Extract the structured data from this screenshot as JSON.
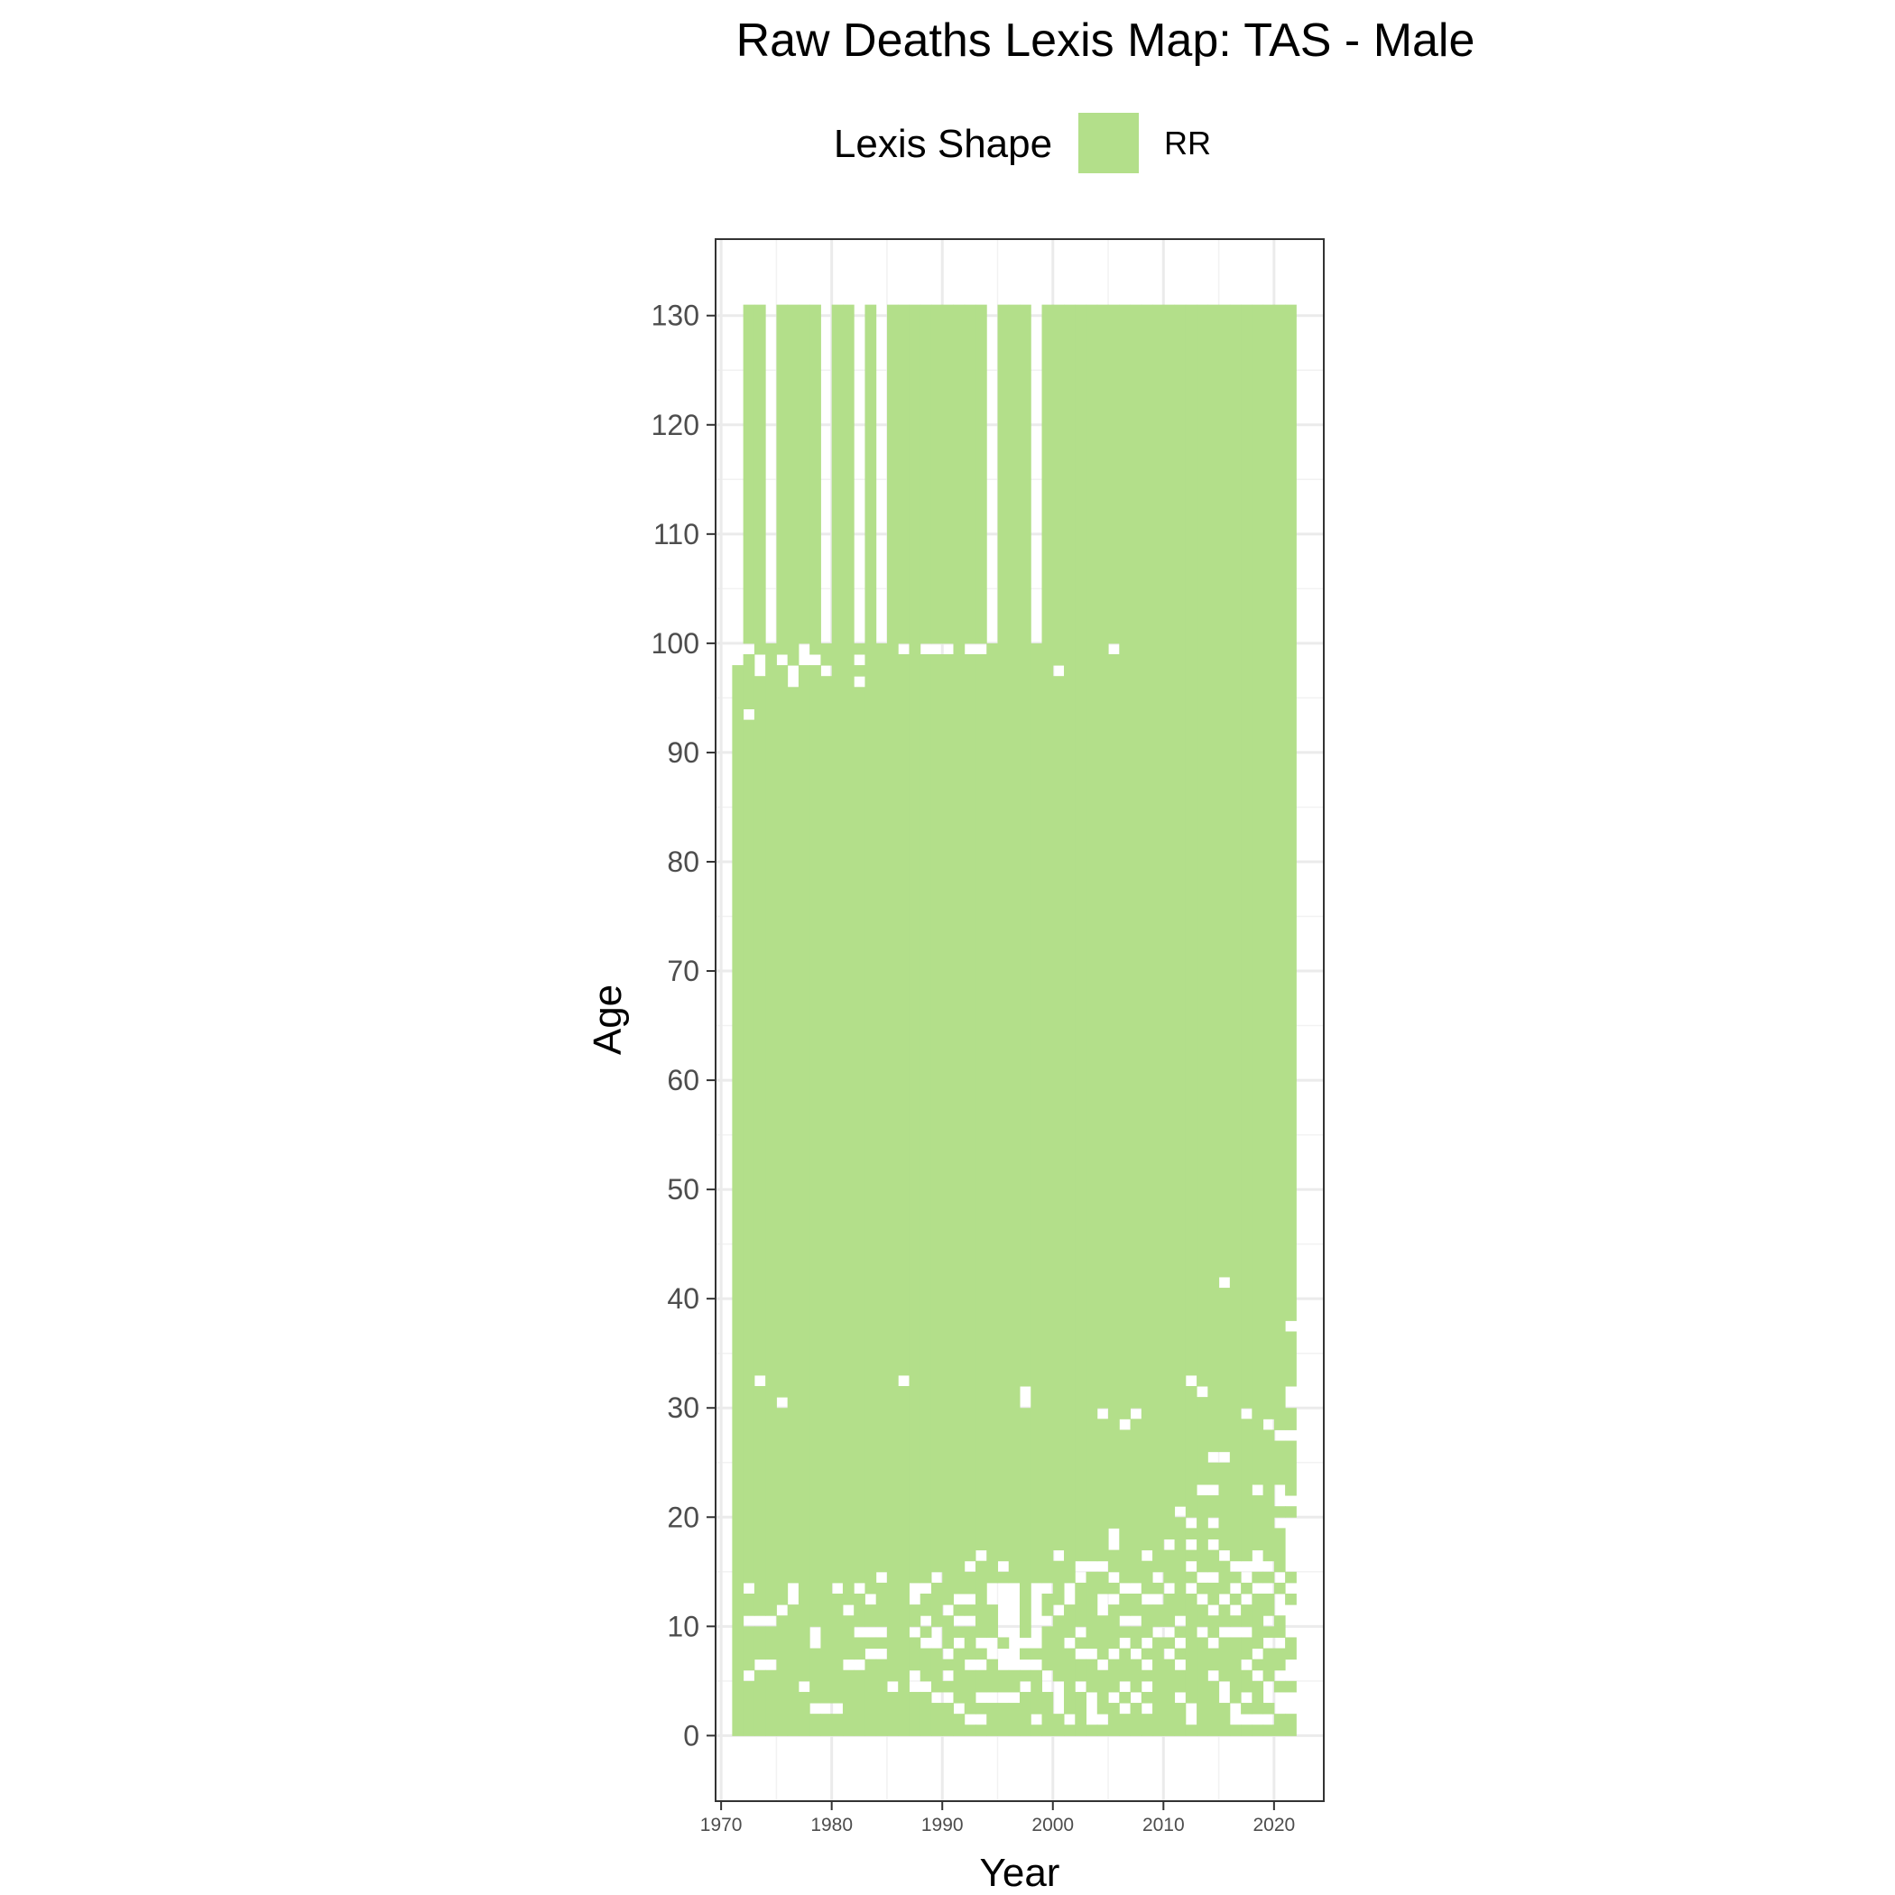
{
  "chart_data": {
    "type": "heatmap",
    "title": "Raw Deaths Lexis Map: TAS - Male",
    "xlabel": "Year",
    "ylabel": "Age",
    "xlim": [
      1969.5,
      2024.5
    ],
    "ylim": [
      -6,
      137
    ],
    "x_ticks": [
      1970,
      1980,
      1990,
      2000,
      2010,
      2020
    ],
    "y_ticks": [
      0,
      10,
      20,
      30,
      40,
      50,
      60,
      70,
      80,
      90,
      100,
      110,
      120,
      130
    ],
    "grid": true,
    "legend": {
      "title": "Lexis Shape",
      "position": "top",
      "entries": [
        {
          "label": "RR",
          "color": "#b3df8a"
        }
      ]
    },
    "fill_color": "#b3df8a",
    "cell": {
      "width_years": 1,
      "height_years": 1
    },
    "years": [
      1971,
      2021
    ],
    "coverage": [
      {
        "years": [
          1971,
          1971
        ],
        "age_max": 97
      },
      {
        "years": [
          1972,
          1973
        ],
        "age_max": 130
      },
      {
        "years": [
          1974,
          1974
        ],
        "age_max": 99
      },
      {
        "years": [
          1975,
          1978
        ],
        "age_max": 130
      },
      {
        "years": [
          1979,
          1979
        ],
        "age_max": 99
      },
      {
        "years": [
          1980,
          1981
        ],
        "age_max": 130
      },
      {
        "years": [
          1982,
          1982
        ],
        "age_max": 99
      },
      {
        "years": [
          1983,
          1983
        ],
        "age_max": 130
      },
      {
        "years": [
          1984,
          1984
        ],
        "age_max": 99
      },
      {
        "years": [
          1985,
          1993
        ],
        "age_max": 130
      },
      {
        "years": [
          1994,
          1994
        ],
        "age_max": 99
      },
      {
        "years": [
          1995,
          1997
        ],
        "age_max": 130
      },
      {
        "years": [
          1998,
          1998
        ],
        "age_max": 99
      },
      {
        "years": [
          1999,
          2021
        ],
        "age_max": 130
      }
    ],
    "missing_cells": [
      [
        1971,
        98
      ],
      [
        1972,
        99
      ],
      [
        1972,
        93
      ],
      [
        1973,
        98
      ],
      [
        1973,
        97
      ],
      [
        1975,
        98
      ],
      [
        1976,
        97
      ],
      [
        1976,
        96
      ],
      [
        1977,
        99
      ],
      [
        1977,
        98
      ],
      [
        1978,
        98
      ],
      [
        1979,
        97
      ],
      [
        1982,
        98
      ],
      [
        1982,
        96
      ],
      [
        1986,
        99
      ],
      [
        1988,
        99
      ],
      [
        1989,
        99
      ],
      [
        1990,
        99
      ],
      [
        1992,
        99
      ],
      [
        1993,
        99
      ],
      [
        2000,
        97
      ],
      [
        2005,
        99
      ],
      [
        1973,
        32
      ],
      [
        1975,
        30
      ],
      [
        1986,
        32
      ],
      [
        1997,
        31
      ],
      [
        1997,
        30
      ],
      [
        2004,
        29
      ],
      [
        2006,
        28
      ],
      [
        2007,
        29
      ],
      [
        2012,
        32
      ],
      [
        2013,
        31
      ],
      [
        2015,
        41
      ],
      [
        2014,
        25
      ],
      [
        2015,
        25
      ],
      [
        2013,
        22
      ],
      [
        2014,
        22
      ],
      [
        2017,
        29
      ],
      [
        2019,
        28
      ],
      [
        2020,
        27
      ],
      [
        2021,
        27
      ],
      [
        2021,
        31
      ],
      [
        2021,
        30
      ],
      [
        2021,
        37
      ],
      [
        2018,
        22
      ],
      [
        2020,
        22
      ],
      [
        2020,
        21
      ],
      [
        2021,
        21
      ],
      [
        2020,
        19
      ],
      [
        2021,
        19
      ],
      [
        2021,
        18
      ],
      [
        2021,
        17
      ],
      [
        2021,
        16
      ],
      [
        2011,
        20
      ],
      [
        2012,
        19
      ],
      [
        2012,
        17
      ],
      [
        2014,
        19
      ],
      [
        2014,
        17
      ],
      [
        2015,
        16
      ],
      [
        2017,
        15
      ],
      [
        2018,
        16
      ],
      [
        2005,
        18
      ],
      [
        2005,
        17
      ],
      [
        2008,
        16
      ],
      [
        2010,
        17
      ],
      [
        2000,
        16
      ],
      [
        1993,
        16
      ],
      [
        1992,
        15
      ],
      [
        1995,
        15
      ],
      [
        1972,
        13
      ],
      [
        1974,
        10
      ],
      [
        1972,
        10
      ],
      [
        1973,
        10
      ],
      [
        1974,
        6
      ],
      [
        1973,
        6
      ],
      [
        1972,
        5
      ],
      [
        1976,
        13
      ],
      [
        1976,
        12
      ],
      [
        1975,
        11
      ],
      [
        1977,
        4
      ],
      [
        1978,
        2
      ],
      [
        1979,
        2
      ],
      [
        1980,
        2
      ],
      [
        1978,
        9
      ],
      [
        1978,
        8
      ],
      [
        1980,
        13
      ],
      [
        1982,
        13
      ],
      [
        1981,
        11
      ],
      [
        1982,
        9
      ],
      [
        1983,
        9
      ],
      [
        1984,
        9
      ],
      [
        1983,
        7
      ],
      [
        1984,
        7
      ],
      [
        1981,
        6
      ],
      [
        1982,
        6
      ],
      [
        1984,
        14
      ],
      [
        1983,
        12
      ],
      [
        1985,
        4
      ],
      [
        1987,
        13
      ],
      [
        1987,
        12
      ],
      [
        1988,
        13
      ],
      [
        1989,
        14
      ],
      [
        1988,
        10
      ],
      [
        1987,
        9
      ],
      [
        1988,
        8
      ],
      [
        1989,
        8
      ],
      [
        1989,
        9
      ],
      [
        1990,
        11
      ],
      [
        1991,
        12
      ],
      [
        1992,
        12
      ],
      [
        1991,
        10
      ],
      [
        1992,
        10
      ],
      [
        1991,
        8
      ],
      [
        1993,
        8
      ],
      [
        1990,
        7
      ],
      [
        1992,
        6
      ],
      [
        1993,
        6
      ],
      [
        1994,
        7
      ],
      [
        1994,
        8
      ],
      [
        1987,
        5
      ],
      [
        1987,
        4
      ],
      [
        1988,
        4
      ],
      [
        1989,
        3
      ],
      [
        1990,
        3
      ],
      [
        1990,
        5
      ],
      [
        1991,
        2
      ],
      [
        1992,
        1
      ],
      [
        1993,
        1
      ],
      [
        1993,
        3
      ],
      [
        1994,
        3
      ],
      [
        1995,
        3
      ],
      [
        1996,
        3
      ],
      [
        1997,
        4
      ],
      [
        1994,
        13
      ],
      [
        1994,
        12
      ],
      [
        1995,
        13
      ],
      [
        1995,
        12
      ],
      [
        1995,
        11
      ],
      [
        1995,
        10
      ],
      [
        1995,
        9
      ],
      [
        1996,
        13
      ],
      [
        1996,
        12
      ],
      [
        1996,
        11
      ],
      [
        1996,
        10
      ],
      [
        1996,
        9
      ],
      [
        1996,
        8
      ],
      [
        1996,
        7
      ],
      [
        1995,
        7
      ],
      [
        1995,
        6
      ],
      [
        1996,
        6
      ],
      [
        1997,
        6
      ],
      [
        1998,
        6
      ],
      [
        1997,
        8
      ],
      [
        1998,
        8
      ],
      [
        1998,
        13
      ],
      [
        1998,
        12
      ],
      [
        1998,
        11
      ],
      [
        1998,
        10
      ],
      [
        1998,
        9
      ],
      [
        1999,
        13
      ],
      [
        1999,
        10
      ],
      [
        1998,
        1
      ],
      [
        1999,
        5
      ],
      [
        1999,
        4
      ],
      [
        2000,
        4
      ],
      [
        2000,
        3
      ],
      [
        2000,
        2
      ],
      [
        2001,
        1
      ],
      [
        2000,
        11
      ],
      [
        2001,
        12
      ],
      [
        2001,
        13
      ],
      [
        2002,
        14
      ],
      [
        2002,
        9
      ],
      [
        2001,
        8
      ],
      [
        2002,
        7
      ],
      [
        2002,
        4
      ],
      [
        2003,
        3
      ],
      [
        2003,
        2
      ],
      [
        2003,
        1
      ],
      [
        2004,
        1
      ],
      [
        2005,
        3
      ],
      [
        2006,
        2
      ],
      [
        2002,
        15
      ],
      [
        2003,
        15
      ],
      [
        2004,
        15
      ],
      [
        2005,
        14
      ],
      [
        2004,
        12
      ],
      [
        2005,
        12
      ],
      [
        2006,
        13
      ],
      [
        2004,
        11
      ],
      [
        2006,
        10
      ],
      [
        2007,
        10
      ],
      [
        2003,
        7
      ],
      [
        2004,
        6
      ],
      [
        2005,
        7
      ],
      [
        2006,
        8
      ],
      [
        2007,
        7
      ],
      [
        2008,
        6
      ],
      [
        2008,
        8
      ],
      [
        2008,
        4
      ],
      [
        2007,
        3
      ],
      [
        2008,
        2
      ],
      [
        2006,
        4
      ],
      [
        2007,
        13
      ],
      [
        2008,
        12
      ],
      [
        2009,
        12
      ],
      [
        2009,
        14
      ],
      [
        2010,
        13
      ],
      [
        2009,
        9
      ],
      [
        2010,
        9
      ],
      [
        2010,
        7
      ],
      [
        2011,
        6
      ],
      [
        2011,
        8
      ],
      [
        2011,
        3
      ],
      [
        2012,
        2
      ],
      [
        2012,
        1
      ],
      [
        2011,
        10
      ],
      [
        2012,
        15
      ],
      [
        2012,
        13
      ],
      [
        2013,
        14
      ],
      [
        2013,
        12
      ],
      [
        2014,
        14
      ],
      [
        2014,
        11
      ],
      [
        2015,
        12
      ],
      [
        2013,
        9
      ],
      [
        2014,
        8
      ],
      [
        2015,
        9
      ],
      [
        2014,
        5
      ],
      [
        2015,
        4
      ],
      [
        2015,
        3
      ],
      [
        2016,
        2
      ],
      [
        2016,
        15
      ],
      [
        2016,
        13
      ],
      [
        2016,
        11
      ],
      [
        2017,
        12
      ],
      [
        2017,
        14
      ],
      [
        2018,
        15
      ],
      [
        2018,
        13
      ],
      [
        2016,
        9
      ],
      [
        2017,
        9
      ],
      [
        2016,
        1
      ],
      [
        2017,
        1
      ],
      [
        2018,
        1
      ],
      [
        2019,
        1
      ],
      [
        2017,
        3
      ],
      [
        2017,
        6
      ],
      [
        2018,
        7
      ],
      [
        2018,
        5
      ],
      [
        2019,
        4
      ],
      [
        2019,
        3
      ],
      [
        2020,
        5
      ],
      [
        2019,
        8
      ],
      [
        2019,
        10
      ],
      [
        2020,
        11
      ],
      [
        2020,
        12
      ],
      [
        2019,
        13
      ],
      [
        2020,
        14
      ],
      [
        2019,
        15
      ],
      [
        2021,
        15
      ],
      [
        2021,
        13
      ],
      [
        2021,
        11
      ],
      [
        2021,
        10
      ],
      [
        2021,
        9
      ],
      [
        2021,
        6
      ],
      [
        2021,
        5
      ],
      [
        2021,
        3
      ],
      [
        2021,
        2
      ],
      [
        2020,
        8
      ],
      [
        2020,
        2
      ],
      [
        2020,
        3
      ]
    ]
  }
}
